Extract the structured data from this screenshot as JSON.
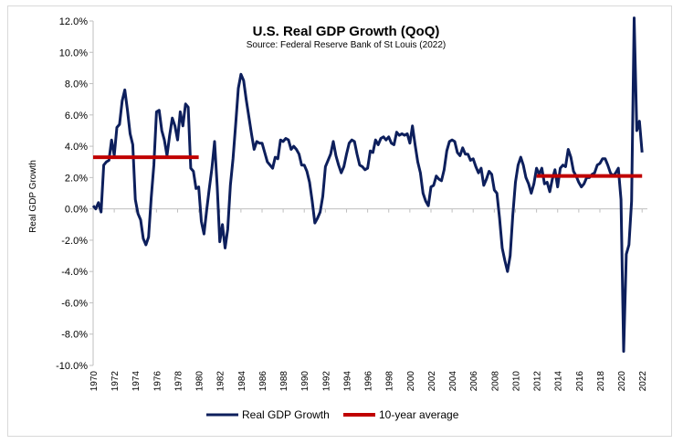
{
  "chart_data": {
    "type": "line",
    "title": "U.S. Real GDP Growth (QoQ)",
    "subtitle": "Source: Federal Reserve Bank of St Louis (2022)",
    "ylabel": "Real GDP Growth",
    "xlabel": "",
    "ylim": [
      -10,
      12
    ],
    "xlim": [
      1970,
      2022.5
    ],
    "y_ticks": [
      -10,
      -8,
      -6,
      -4,
      -2,
      0,
      2,
      4,
      6,
      8,
      10,
      12
    ],
    "y_tick_labels": [
      "-10.0%",
      "-8.0%",
      "-6.0%",
      "-4.0%",
      "-2.0%",
      "0.0%",
      "2.0%",
      "4.0%",
      "6.0%",
      "8.0%",
      "10.0%",
      "12.0%"
    ],
    "x_ticks": [
      1970,
      1972,
      1974,
      1976,
      1978,
      1980,
      1982,
      1984,
      1986,
      1988,
      1990,
      1992,
      1994,
      1996,
      1998,
      2000,
      2002,
      2004,
      2006,
      2008,
      2010,
      2012,
      2014,
      2016,
      2018,
      2020,
      2022
    ],
    "x_tick_labels": [
      "1970",
      "1972",
      "1974",
      "1976",
      "1978",
      "1980",
      "1982",
      "1984",
      "1986",
      "1988",
      "1990",
      "1992",
      "1994",
      "1996",
      "1998",
      "2000",
      "2002",
      "2004",
      "2006",
      "2008",
      "2010",
      "2012",
      "2014",
      "2016",
      "2018",
      "2020",
      "2022"
    ],
    "grid": false,
    "legend_position": "bottom",
    "series": [
      {
        "name": "Real GDP Growth",
        "color": "#0d1f5c",
        "points": [
          [
            1970.0,
            0.2
          ],
          [
            1970.25,
            0.0
          ],
          [
            1970.5,
            0.4
          ],
          [
            1970.75,
            -0.2
          ],
          [
            1971.0,
            2.8
          ],
          [
            1971.25,
            3.0
          ],
          [
            1971.5,
            3.1
          ],
          [
            1971.75,
            4.4
          ],
          [
            1972.0,
            3.4
          ],
          [
            1972.25,
            5.2
          ],
          [
            1972.5,
            5.4
          ],
          [
            1972.75,
            6.9
          ],
          [
            1973.0,
            7.6
          ],
          [
            1973.25,
            6.3
          ],
          [
            1973.5,
            4.8
          ],
          [
            1973.75,
            4.1
          ],
          [
            1974.0,
            0.6
          ],
          [
            1974.25,
            -0.3
          ],
          [
            1974.5,
            -0.7
          ],
          [
            1974.75,
            -1.9
          ],
          [
            1975.0,
            -2.3
          ],
          [
            1975.25,
            -1.8
          ],
          [
            1975.5,
            0.7
          ],
          [
            1975.75,
            2.8
          ],
          [
            1976.0,
            6.2
          ],
          [
            1976.25,
            6.3
          ],
          [
            1976.5,
            5.0
          ],
          [
            1976.75,
            4.4
          ],
          [
            1977.0,
            3.4
          ],
          [
            1977.25,
            4.7
          ],
          [
            1977.5,
            5.8
          ],
          [
            1977.75,
            5.3
          ],
          [
            1978.0,
            4.4
          ],
          [
            1978.25,
            6.2
          ],
          [
            1978.5,
            5.3
          ],
          [
            1978.75,
            6.7
          ],
          [
            1979.0,
            6.5
          ],
          [
            1979.25,
            2.6
          ],
          [
            1979.5,
            2.4
          ],
          [
            1979.75,
            1.3
          ],
          [
            1980.0,
            1.4
          ],
          [
            1980.25,
            -0.8
          ],
          [
            1980.5,
            -1.6
          ],
          [
            1980.75,
            -0.1
          ],
          [
            1981.0,
            1.3
          ],
          [
            1981.25,
            2.6
          ],
          [
            1981.5,
            4.3
          ],
          [
            1981.75,
            1.4
          ],
          [
            1982.0,
            -2.1
          ],
          [
            1982.25,
            -1.0
          ],
          [
            1982.5,
            -2.5
          ],
          [
            1982.75,
            -1.3
          ],
          [
            1983.0,
            1.5
          ],
          [
            1983.25,
            3.2
          ],
          [
            1983.5,
            5.4
          ],
          [
            1983.75,
            7.7
          ],
          [
            1984.0,
            8.6
          ],
          [
            1984.25,
            8.2
          ],
          [
            1984.5,
            7.0
          ],
          [
            1984.75,
            5.9
          ],
          [
            1985.0,
            4.8
          ],
          [
            1985.25,
            3.8
          ],
          [
            1985.5,
            4.3
          ],
          [
            1985.75,
            4.2
          ],
          [
            1986.0,
            4.2
          ],
          [
            1986.25,
            3.6
          ],
          [
            1986.5,
            3.0
          ],
          [
            1986.75,
            2.8
          ],
          [
            1987.0,
            2.6
          ],
          [
            1987.25,
            3.3
          ],
          [
            1987.5,
            3.2
          ],
          [
            1987.75,
            4.4
          ],
          [
            1988.0,
            4.3
          ],
          [
            1988.25,
            4.5
          ],
          [
            1988.5,
            4.4
          ],
          [
            1988.75,
            3.8
          ],
          [
            1989.0,
            4.0
          ],
          [
            1989.25,
            3.8
          ],
          [
            1989.5,
            3.5
          ],
          [
            1989.75,
            2.8
          ],
          [
            1990.0,
            2.8
          ],
          [
            1990.25,
            2.4
          ],
          [
            1990.5,
            1.7
          ],
          [
            1990.75,
            0.5
          ],
          [
            1991.0,
            -0.9
          ],
          [
            1991.25,
            -0.6
          ],
          [
            1991.5,
            -0.2
          ],
          [
            1991.75,
            0.8
          ],
          [
            1992.0,
            2.7
          ],
          [
            1992.25,
            3.1
          ],
          [
            1992.5,
            3.5
          ],
          [
            1992.75,
            4.3
          ],
          [
            1993.0,
            3.4
          ],
          [
            1993.25,
            2.8
          ],
          [
            1993.5,
            2.3
          ],
          [
            1993.75,
            2.7
          ],
          [
            1994.0,
            3.5
          ],
          [
            1994.25,
            4.2
          ],
          [
            1994.5,
            4.4
          ],
          [
            1994.75,
            4.3
          ],
          [
            1995.0,
            3.5
          ],
          [
            1995.25,
            2.8
          ],
          [
            1995.5,
            2.7
          ],
          [
            1995.75,
            2.5
          ],
          [
            1996.0,
            2.6
          ],
          [
            1996.25,
            3.7
          ],
          [
            1996.5,
            3.6
          ],
          [
            1996.75,
            4.4
          ],
          [
            1997.0,
            4.1
          ],
          [
            1997.25,
            4.5
          ],
          [
            1997.5,
            4.6
          ],
          [
            1997.75,
            4.4
          ],
          [
            1998.0,
            4.6
          ],
          [
            1998.25,
            4.2
          ],
          [
            1998.5,
            4.1
          ],
          [
            1998.75,
            4.9
          ],
          [
            1999.0,
            4.7
          ],
          [
            1999.25,
            4.8
          ],
          [
            1999.5,
            4.7
          ],
          [
            1999.75,
            4.8
          ],
          [
            2000.0,
            4.2
          ],
          [
            2000.25,
            5.3
          ],
          [
            2000.5,
            4.1
          ],
          [
            2000.75,
            3.0
          ],
          [
            2001.0,
            2.3
          ],
          [
            2001.25,
            1.0
          ],
          [
            2001.5,
            0.5
          ],
          [
            2001.75,
            0.2
          ],
          [
            2002.0,
            1.4
          ],
          [
            2002.25,
            1.5
          ],
          [
            2002.5,
            2.1
          ],
          [
            2002.75,
            1.9
          ],
          [
            2003.0,
            1.8
          ],
          [
            2003.25,
            2.5
          ],
          [
            2003.5,
            3.7
          ],
          [
            2003.75,
            4.3
          ],
          [
            2004.0,
            4.4
          ],
          [
            2004.25,
            4.3
          ],
          [
            2004.5,
            3.6
          ],
          [
            2004.75,
            3.4
          ],
          [
            2005.0,
            3.9
          ],
          [
            2005.25,
            3.5
          ],
          [
            2005.5,
            3.5
          ],
          [
            2005.75,
            3.1
          ],
          [
            2006.0,
            3.2
          ],
          [
            2006.25,
            2.7
          ],
          [
            2006.5,
            2.3
          ],
          [
            2006.75,
            2.6
          ],
          [
            2007.0,
            1.5
          ],
          [
            2007.25,
            1.9
          ],
          [
            2007.5,
            2.4
          ],
          [
            2007.75,
            2.2
          ],
          [
            2008.0,
            1.2
          ],
          [
            2008.25,
            1.0
          ],
          [
            2008.5,
            -0.6
          ],
          [
            2008.75,
            -2.5
          ],
          [
            2009.0,
            -3.3
          ],
          [
            2009.25,
            -4.0
          ],
          [
            2009.5,
            -3.0
          ],
          [
            2009.75,
            -0.4
          ],
          [
            2010.0,
            1.7
          ],
          [
            2010.25,
            2.8
          ],
          [
            2010.5,
            3.3
          ],
          [
            2010.75,
            2.8
          ],
          [
            2011.0,
            2.0
          ],
          [
            2011.25,
            1.6
          ],
          [
            2011.5,
            1.0
          ],
          [
            2011.75,
            1.6
          ],
          [
            2012.0,
            2.6
          ],
          [
            2012.25,
            2.2
          ],
          [
            2012.5,
            2.6
          ],
          [
            2012.75,
            1.6
          ],
          [
            2013.0,
            1.7
          ],
          [
            2013.25,
            1.1
          ],
          [
            2013.5,
            1.9
          ],
          [
            2013.75,
            2.5
          ],
          [
            2014.0,
            1.4
          ],
          [
            2014.25,
            2.6
          ],
          [
            2014.5,
            2.8
          ],
          [
            2014.75,
            2.7
          ],
          [
            2015.0,
            3.8
          ],
          [
            2015.25,
            3.3
          ],
          [
            2015.5,
            2.4
          ],
          [
            2015.75,
            2.1
          ],
          [
            2016.0,
            1.7
          ],
          [
            2016.25,
            1.4
          ],
          [
            2016.5,
            1.6
          ],
          [
            2016.75,
            2.0
          ],
          [
            2017.0,
            2.0
          ],
          [
            2017.25,
            2.2
          ],
          [
            2017.5,
            2.3
          ],
          [
            2017.75,
            2.8
          ],
          [
            2018.0,
            2.9
          ],
          [
            2018.25,
            3.2
          ],
          [
            2018.5,
            3.2
          ],
          [
            2018.75,
            2.8
          ],
          [
            2019.0,
            2.3
          ],
          [
            2019.25,
            2.1
          ],
          [
            2019.5,
            2.3
          ],
          [
            2019.75,
            2.6
          ],
          [
            2020.0,
            0.6
          ],
          [
            2020.25,
            -9.1
          ],
          [
            2020.5,
            -2.9
          ],
          [
            2020.75,
            -2.3
          ],
          [
            2021.0,
            0.5
          ],
          [
            2021.25,
            12.2
          ],
          [
            2021.5,
            5.0
          ],
          [
            2021.75,
            5.6
          ],
          [
            2022.0,
            3.6
          ]
        ]
      },
      {
        "name": "10-year average",
        "color": "#c00000",
        "segments": [
          {
            "x": [
              1970,
              1980
            ],
            "y": 3.3
          },
          {
            "x": [
              2012,
              2022
            ],
            "y": 2.1
          }
        ]
      }
    ]
  }
}
